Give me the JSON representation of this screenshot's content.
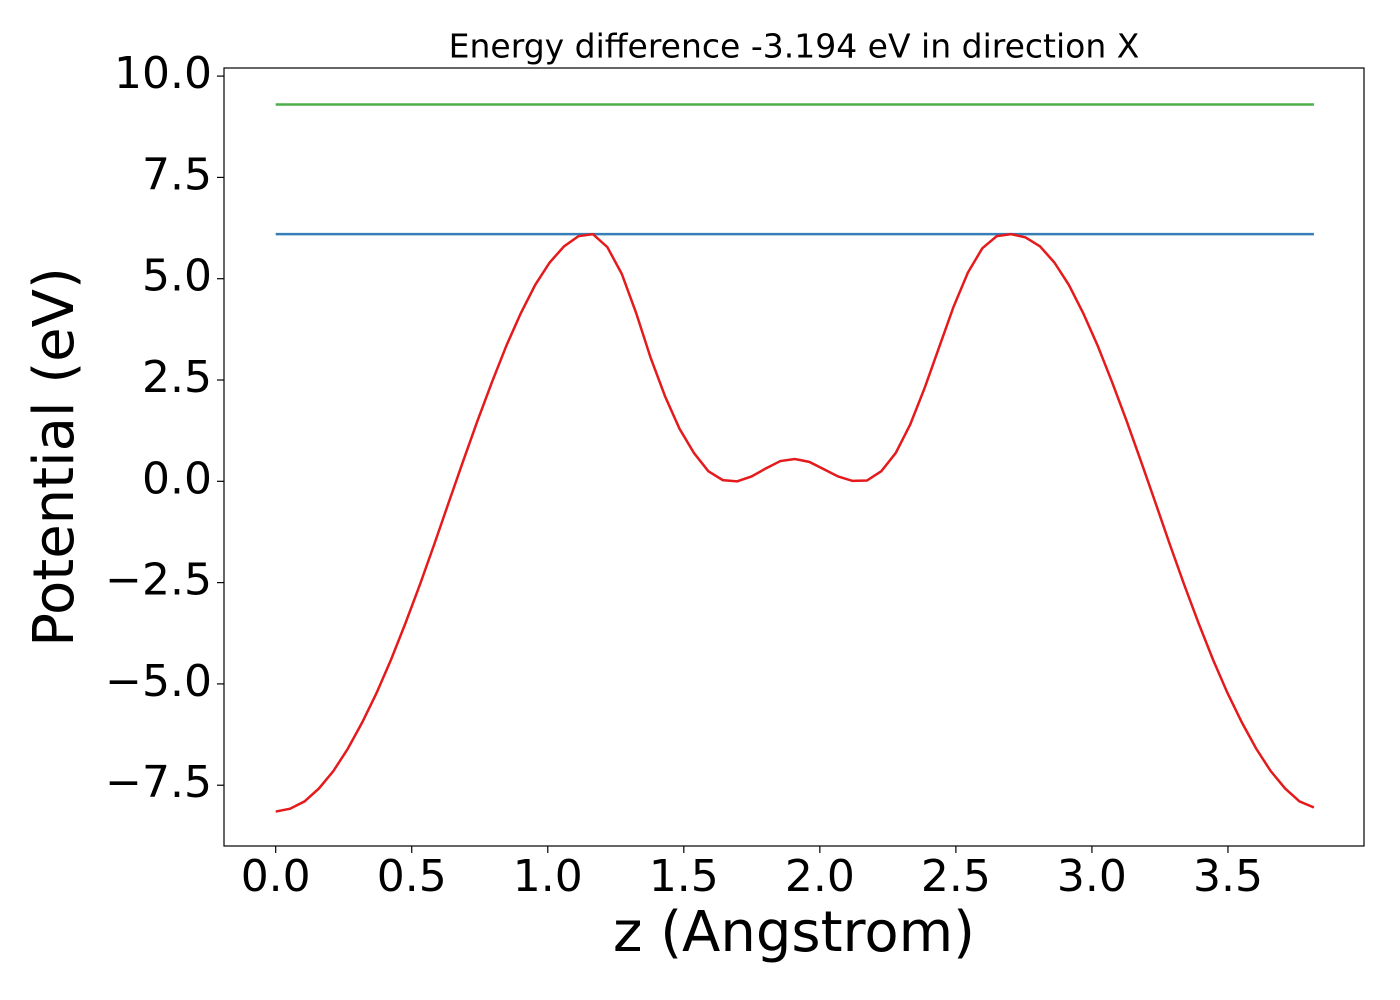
{
  "chart_data": {
    "type": "line",
    "title": "Energy difference -3.194 eV in direction X",
    "x_label": "z (Angstrom)",
    "y_label": "Potential (eV)",
    "xlim": [
      -0.19,
      4.0
    ],
    "ylim": [
      -9.0,
      10.2
    ],
    "xticks": [
      {
        "value": 0,
        "label": "0.0"
      },
      0.5,
      {
        "value": 1,
        "label": "1.0"
      },
      1.5,
      {
        "value": 2,
        "label": "2.0"
      },
      2.5,
      {
        "value": 3,
        "label": "3.0"
      },
      3.5
    ],
    "yticks": [
      {
        "value": -7.5,
        "label": "−7.5"
      },
      {
        "value": -5,
        "label": "−5.0"
      },
      {
        "value": -2.5,
        "label": "−2.5"
      },
      {
        "value": 0,
        "label": "0.0"
      },
      2.5,
      {
        "value": 5,
        "label": "5.0"
      },
      7.5,
      {
        "value": 10,
        "label": "10.0"
      }
    ],
    "series": [
      {
        "color": "#e41a1c",
        "x": [
          0,
          0.053,
          0.106,
          0.159,
          0.212,
          0.265,
          0.318,
          0.371,
          0.424,
          0.477,
          0.53,
          0.583,
          0.636,
          0.689,
          0.742,
          0.795,
          0.848,
          0.901,
          0.954,
          1.007,
          1.06,
          1.113,
          1.166,
          1.219,
          1.272,
          1.325,
          1.378,
          1.431,
          1.484,
          1.537,
          1.59,
          1.643,
          1.696,
          1.749,
          1.802,
          1.855,
          1.908,
          1.961,
          2.014,
          2.067,
          2.12,
          2.173,
          2.226,
          2.279,
          2.332,
          2.385,
          2.438,
          2.491,
          2.544,
          2.597,
          2.65,
          2.703,
          2.756,
          2.809,
          2.862,
          2.915,
          2.968,
          3.021,
          3.074,
          3.127,
          3.18,
          3.233,
          3.286,
          3.339,
          3.392,
          3.445,
          3.498,
          3.551,
          3.604,
          3.657,
          3.71,
          3.763,
          3.816
        ],
        "values": [
          -8.15,
          -8.08,
          -7.9,
          -7.58,
          -7.15,
          -6.6,
          -5.95,
          -5.22,
          -4.4,
          -3.5,
          -2.55,
          -1.55,
          -0.52,
          0.5,
          1.5,
          2.45,
          3.35,
          4.15,
          4.85,
          5.4,
          5.8,
          6.05,
          6.1,
          5.78,
          5.12,
          4.15,
          3.05,
          2.1,
          1.3,
          0.7,
          0.25,
          0.03,
          0,
          0.12,
          0.32,
          0.5,
          0.55,
          0.48,
          0.3,
          0.12,
          0.01,
          0.02,
          0.25,
          0.7,
          1.4,
          2.3,
          3.3,
          4.3,
          5.15,
          5.75,
          6.05,
          6.1,
          6.02,
          5.8,
          5.4,
          4.85,
          4.15,
          3.35,
          2.45,
          1.5,
          0.5,
          -0.52,
          -1.55,
          -2.55,
          -3.5,
          -4.4,
          -5.22,
          -5.95,
          -6.6,
          -7.15,
          -7.58,
          -7.9,
          -8.05
        ]
      },
      {
        "color": "#377eb8",
        "x": [
          0,
          3.816
        ],
        "values": [
          6.1,
          6.1
        ]
      },
      {
        "color": "#4daf4a",
        "x": [
          0,
          3.816
        ],
        "values": [
          9.3,
          9.3
        ]
      }
    ]
  }
}
